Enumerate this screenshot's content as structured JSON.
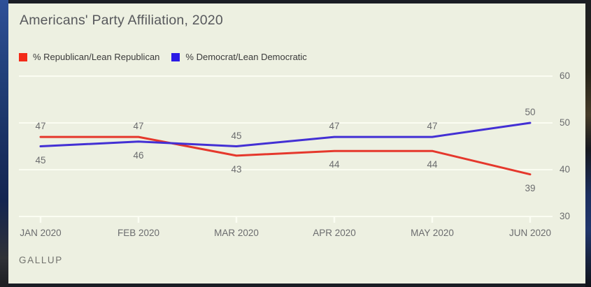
{
  "title": "Americans' Party Affiliation, 2020",
  "source": "GALLUP",
  "legend": {
    "items": [
      {
        "label": "% Republican/Lean Republican",
        "swatch_color": "#f32a18"
      },
      {
        "label": "% Democrat/Lean Democratic",
        "swatch_color": "#2b1ae5"
      }
    ]
  },
  "colors": {
    "panel_background": "#edf0e1",
    "gridline": "#fbfdf2",
    "republican_line": "#e5382c",
    "democrat_line": "#4330d4",
    "label_text": "#6b6c6e"
  },
  "chart_data": {
    "type": "line",
    "title": "Americans' Party Affiliation, 2020",
    "categories": [
      "JAN 2020",
      "FEB 2020",
      "MAR 2020",
      "APR 2020",
      "MAY 2020",
      "JUN 2020"
    ],
    "series": [
      {
        "name": "% Republican/Lean Republican",
        "color": "#e5382c",
        "values": [
          47,
          47,
          43,
          44,
          44,
          39
        ]
      },
      {
        "name": "% Democrat/Lean Democratic",
        "color": "#4330d4",
        "values": [
          45,
          46,
          45,
          47,
          47,
          50
        ]
      }
    ],
    "xlabel": "",
    "ylabel": "",
    "ylim": [
      30,
      60
    ],
    "yticks": [
      60,
      50,
      40,
      30
    ],
    "grid": "horizontal",
    "legend_position": "top-left",
    "value_labels": "higher series above point, lower series below point"
  }
}
